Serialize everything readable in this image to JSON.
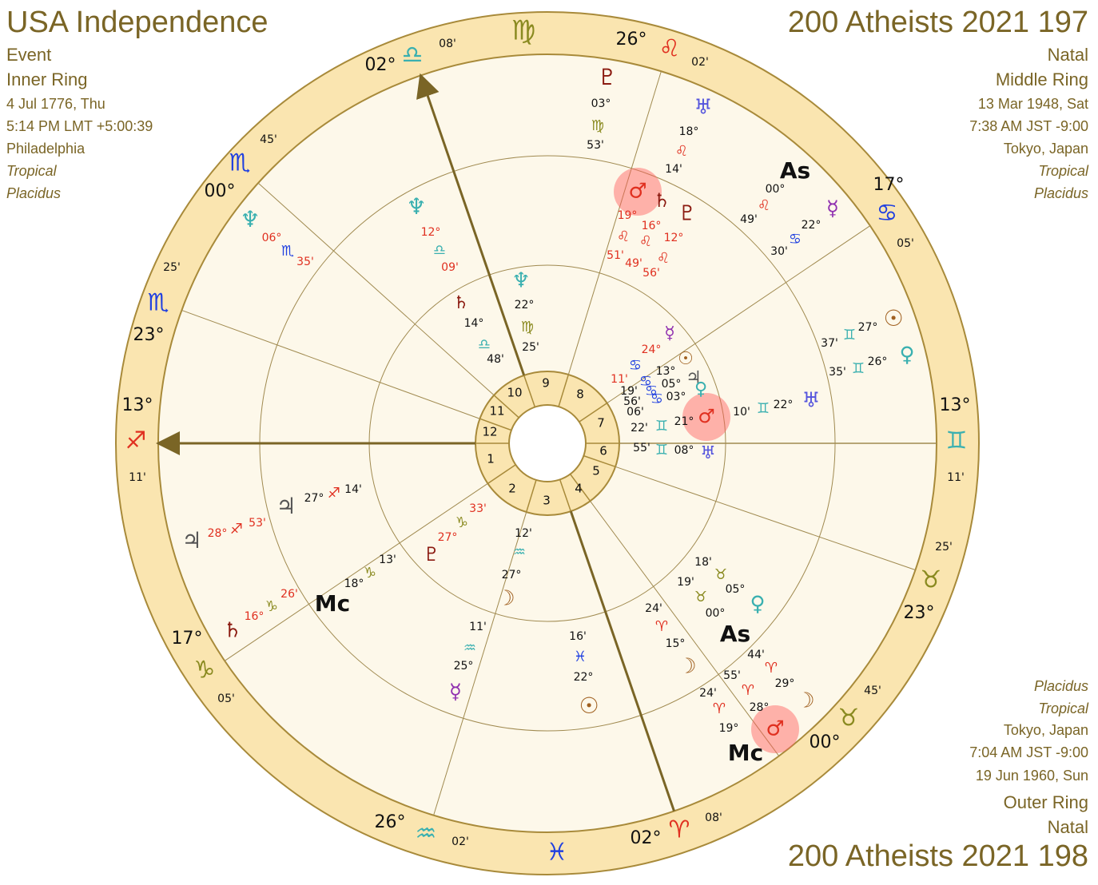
{
  "header_left": {
    "title": "USA Independence",
    "lines": [
      "Event",
      "Inner Ring",
      "4 Jul 1776, Thu",
      "5:14 PM LMT +5:00:39",
      "Philadelphia",
      "Tropical",
      "Placidus"
    ]
  },
  "header_right": {
    "title": "200 Atheists 2021 197",
    "lines": [
      "Natal",
      "Middle Ring",
      "13 Mar 1948, Sat",
      "7:38 AM JST -9:00",
      "Tokyo, Japan",
      "Tropical",
      "Placidus"
    ]
  },
  "footer_right": {
    "lines": [
      "Placidus",
      "Tropical",
      "Tokyo, Japan",
      "7:04 AM JST -9:00",
      "19 Jun 1960, Sun",
      "Outer Ring",
      "Natal"
    ],
    "title": "200 Atheists 2021 198"
  },
  "house_numbers": [
    "1",
    "2",
    "3",
    "4",
    "5",
    "6",
    "7",
    "8",
    "9",
    "10",
    "11",
    "12"
  ],
  "zodiac_ring": [
    "♍",
    "26°",
    "♌",
    "02'",
    "08'",
    "02°",
    "♎",
    "45'",
    "♏",
    "00°",
    "25'",
    "♏",
    "23°",
    "13°",
    "♐",
    "11'",
    "17°",
    "♑",
    "05'",
    "26°",
    "♒",
    "02'",
    "♓",
    "02°",
    "♈",
    "08'",
    "45'",
    "♉",
    "00°",
    "25'",
    "♉",
    "23°",
    "13°",
    "♊",
    "11'",
    "17°",
    "♋",
    "05'"
  ],
  "planet_labels": [
    "♇",
    "03°",
    "♍",
    "53'",
    "♅",
    "18°",
    "♌",
    "14'",
    "As",
    "00°",
    "♌",
    "49'",
    "☿",
    "22°",
    "♋",
    "30'",
    "♂",
    "♄",
    "♇",
    "19°",
    "16°",
    "12°",
    "♌",
    "♌",
    "♌",
    "51'",
    "49'",
    "56'",
    "☉",
    "27°",
    "♊",
    "37'",
    "♀",
    "26°",
    "♊",
    "35'",
    "♅",
    "22°",
    "♊",
    "10'",
    "☿",
    "24°",
    "♋",
    "11'",
    "☉",
    "13°",
    "♃",
    "05°",
    "♀",
    "03°",
    "♋",
    "♋",
    "♋",
    "19'",
    "56'",
    "06'",
    "♂",
    "21°",
    "♊",
    "22'",
    "♅",
    "08°",
    "♊",
    "55'",
    "18'",
    "♉",
    "05°",
    "♀",
    "19'",
    "♉",
    "00°",
    "As",
    "24'",
    "♈",
    "15°",
    "☽",
    "44'",
    "♈",
    "29°",
    "☽",
    "55'",
    "♈",
    "28°",
    "♂",
    "24'",
    "♈",
    "19°",
    "Mc",
    "16'",
    "♓",
    "22°",
    "☉",
    "12'",
    "♒",
    "27°",
    "☽",
    "11'",
    "♒",
    "25°",
    "☿",
    "33'",
    "♑",
    "27°",
    "♇",
    "13'",
    "♑",
    "18°",
    "Mc",
    "14'",
    "♐",
    "27°",
    "♃",
    "53'",
    "♐",
    "28°",
    "♃",
    "26'",
    "♑",
    "16°",
    "♄",
    "♆",
    "06°",
    "♏",
    "35'",
    "♆",
    "12°",
    "♎",
    "09'",
    "♄",
    "14°",
    "♎",
    "48'",
    "♆",
    "22°",
    "♍",
    "25'"
  ]
}
